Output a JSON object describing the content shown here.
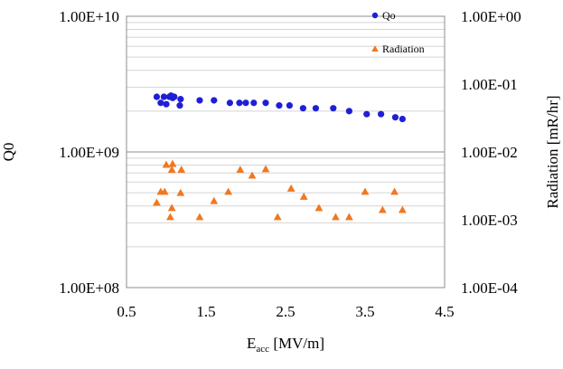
{
  "chart_data": {
    "type": "scatter",
    "title": "",
    "xlabel": {
      "main": "E",
      "sub": "acc",
      "suffix": " [MV/m]"
    },
    "ylabel": "Q0",
    "y2label": "Radiation [mR/hr]",
    "xlim": [
      0.5,
      4.5
    ],
    "ylim": [
      100000000,
      10000000000
    ],
    "y2lim": [
      0.0001,
      1.0
    ],
    "yscale": "log",
    "y2scale": "log",
    "grid": true,
    "legend_position": "top-right-inside",
    "x_ticks": [
      "0.5",
      "1.5",
      "2.5",
      "3.5",
      "4.5"
    ],
    "x_tick_values": [
      0.5,
      1.5,
      2.5,
      3.5,
      4.5
    ],
    "y_ticks": [
      "1.00E+10",
      "1.00E+09",
      "1.00E+08"
    ],
    "y_tick_values": [
      10000000000,
      1000000000,
      100000000
    ],
    "y2_ticks": [
      "1.00E+00",
      "1.00E-01",
      "1.00E-02",
      "1.00E-03",
      "1.00E-04"
    ],
    "y2_tick_values": [
      1.0,
      0.1,
      0.01,
      0.001,
      0.0001
    ],
    "series": [
      {
        "name": "Qo",
        "axis": "left",
        "marker": "circle",
        "color": "#1f1fd6",
        "points": [
          [
            0.88,
            2550000000.0
          ],
          [
            0.93,
            2300000000.0
          ],
          [
            0.97,
            2550000000.0
          ],
          [
            1.0,
            2250000000.0
          ],
          [
            1.04,
            2550000000.0
          ],
          [
            1.06,
            2600000000.0
          ],
          [
            1.08,
            2500000000.0
          ],
          [
            1.1,
            2550000000.0
          ],
          [
            1.17,
            2200000000.0
          ],
          [
            1.18,
            2450000000.0
          ],
          [
            1.42,
            2400000000.0
          ],
          [
            1.6,
            2400000000.0
          ],
          [
            1.8,
            2300000000.0
          ],
          [
            1.92,
            2300000000.0
          ],
          [
            2.0,
            2300000000.0
          ],
          [
            2.1,
            2300000000.0
          ],
          [
            2.25,
            2300000000.0
          ],
          [
            2.42,
            2200000000.0
          ],
          [
            2.55,
            2200000000.0
          ],
          [
            2.72,
            2100000000.0
          ],
          [
            2.88,
            2100000000.0
          ],
          [
            3.1,
            2100000000.0
          ],
          [
            3.3,
            2000000000.0
          ],
          [
            3.52,
            1900000000.0
          ],
          [
            3.7,
            1900000000.0
          ],
          [
            3.88,
            1800000000.0
          ],
          [
            3.97,
            1750000000.0
          ]
        ]
      },
      {
        "name": "Radiation",
        "axis": "right",
        "marker": "triangle",
        "color": "#f07820",
        "points": [
          [
            0.88,
            0.0018
          ],
          [
            0.93,
            0.0026
          ],
          [
            0.98,
            0.0026
          ],
          [
            1.0,
            0.0065
          ],
          [
            1.05,
            0.0011
          ],
          [
            1.07,
            0.0055
          ],
          [
            1.07,
            0.0015
          ],
          [
            1.08,
            0.0067
          ],
          [
            1.18,
            0.0025
          ],
          [
            1.19,
            0.0055
          ],
          [
            1.42,
            0.0011
          ],
          [
            1.6,
            0.0019
          ],
          [
            1.78,
            0.0026
          ],
          [
            1.93,
            0.0055
          ],
          [
            2.08,
            0.0045
          ],
          [
            2.25,
            0.0056
          ],
          [
            2.4,
            0.0011
          ],
          [
            2.57,
            0.0029
          ],
          [
            2.73,
            0.0022
          ],
          [
            2.92,
            0.0015
          ],
          [
            3.13,
            0.0011
          ],
          [
            3.3,
            0.0011
          ],
          [
            3.5,
            0.0026
          ],
          [
            3.72,
            0.0014
          ],
          [
            3.87,
            0.0026
          ],
          [
            3.97,
            0.0014
          ]
        ]
      }
    ]
  }
}
